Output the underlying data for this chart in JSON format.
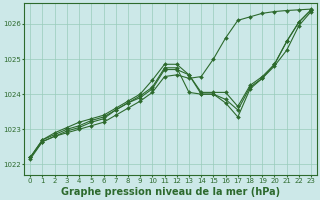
{
  "bg_color": "#cce8e8",
  "grid_color": "#99ccbb",
  "line_color": "#2d6a2d",
  "xlabel": "Graphe pression niveau de la mer (hPa)",
  "xlabel_color": "#2d6a2d",
  "ylim": [
    1021.7,
    1026.6
  ],
  "xlim": [
    -0.5,
    23.5
  ],
  "yticks": [
    1022,
    1023,
    1024,
    1025,
    1026
  ],
  "xticks": [
    0,
    1,
    2,
    3,
    4,
    5,
    6,
    7,
    8,
    9,
    10,
    11,
    12,
    13,
    14,
    15,
    16,
    17,
    18,
    19,
    20,
    21,
    22,
    23
  ],
  "series": [
    [
      1022.2,
      1022.65,
      1022.8,
      1022.95,
      1023.05,
      1023.2,
      1023.3,
      1023.55,
      1023.75,
      1023.95,
      1024.2,
      1024.75,
      1024.75,
      1024.05,
      1024.0,
      1024.0,
      1023.75,
      1023.35,
      1024.15,
      1024.45,
      1024.8,
      1025.25,
      1025.95,
      1026.35
    ],
    [
      1022.2,
      1022.7,
      1022.85,
      1023.0,
      1023.1,
      1023.25,
      1023.35,
      1023.55,
      1023.75,
      1023.9,
      1024.15,
      1024.7,
      1024.7,
      1024.55,
      1024.0,
      1024.0,
      1023.85,
      1023.55,
      1024.2,
      1024.45,
      1024.85,
      1025.5,
      1026.05,
      1026.4
    ],
    [
      1022.2,
      1022.7,
      1022.9,
      1023.05,
      1023.2,
      1023.3,
      1023.4,
      1023.6,
      1023.8,
      1024.0,
      1024.4,
      1024.85,
      1024.85,
      1024.55,
      1024.05,
      1024.05,
      1024.05,
      1023.65,
      1024.25,
      1024.5,
      1024.85,
      1025.5,
      1026.05,
      1026.4
    ],
    [
      1022.15,
      1022.65,
      1022.8,
      1022.9,
      1023.0,
      1023.1,
      1023.2,
      1023.4,
      1023.6,
      1023.8,
      1024.05,
      1024.5,
      1024.55,
      1024.45,
      1024.5,
      1025.0,
      1025.6,
      1026.1,
      1026.2,
      1026.3,
      1026.35,
      1026.38,
      1026.4,
      1026.42
    ]
  ],
  "marker": "D",
  "markersize": 2.0,
  "linewidth": 0.8,
  "tick_fontsize": 5.0,
  "xlabel_fontsize": 7.0,
  "spine_color": "#2d6a2d"
}
